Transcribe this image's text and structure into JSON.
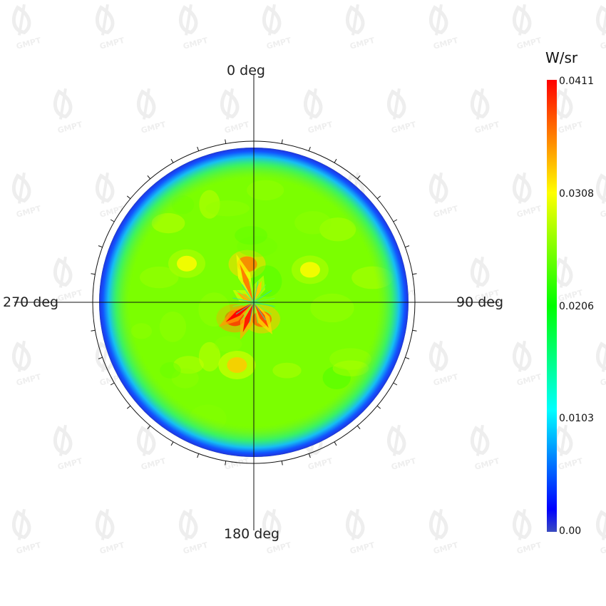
{
  "chart_data": {
    "type": "heatmap",
    "subtype": "polar-intensity-map",
    "unit": "W/sr",
    "angle_labels": [
      "0 deg",
      "90 deg",
      "180 deg",
      "270 deg"
    ],
    "colorbar": {
      "min": 0.0,
      "max": 0.0411,
      "tick_labels": [
        "0.0411",
        "0.0308",
        "0.0206",
        "0.0103",
        "0.00"
      ],
      "tick_values": [
        0.0411,
        0.0308,
        0.0206,
        0.0103,
        0.0
      ],
      "colormap": [
        "#3b4cc0",
        "#0000ff",
        "#00ffff",
        "#00ff00",
        "#ffff00",
        "#ff0000"
      ]
    },
    "field": {
      "background_value": 0.0255,
      "edge_falloff_start_fraction": 0.9,
      "hotspots": [
        {
          "angle_deg": 350,
          "radius_fraction": 0.25,
          "value": 0.036
        },
        {
          "angle_deg": 230,
          "radius_fraction": 0.16,
          "value": 0.039
        },
        {
          "angle_deg": 155,
          "radius_fraction": 0.12,
          "value": 0.037
        },
        {
          "angle_deg": 195,
          "radius_fraction": 0.42,
          "value": 0.033
        },
        {
          "angle_deg": 60,
          "radius_fraction": 0.42,
          "value": 0.031
        },
        {
          "angle_deg": 300,
          "radius_fraction": 0.5,
          "value": 0.031
        }
      ]
    },
    "watermark": "GMPT"
  }
}
